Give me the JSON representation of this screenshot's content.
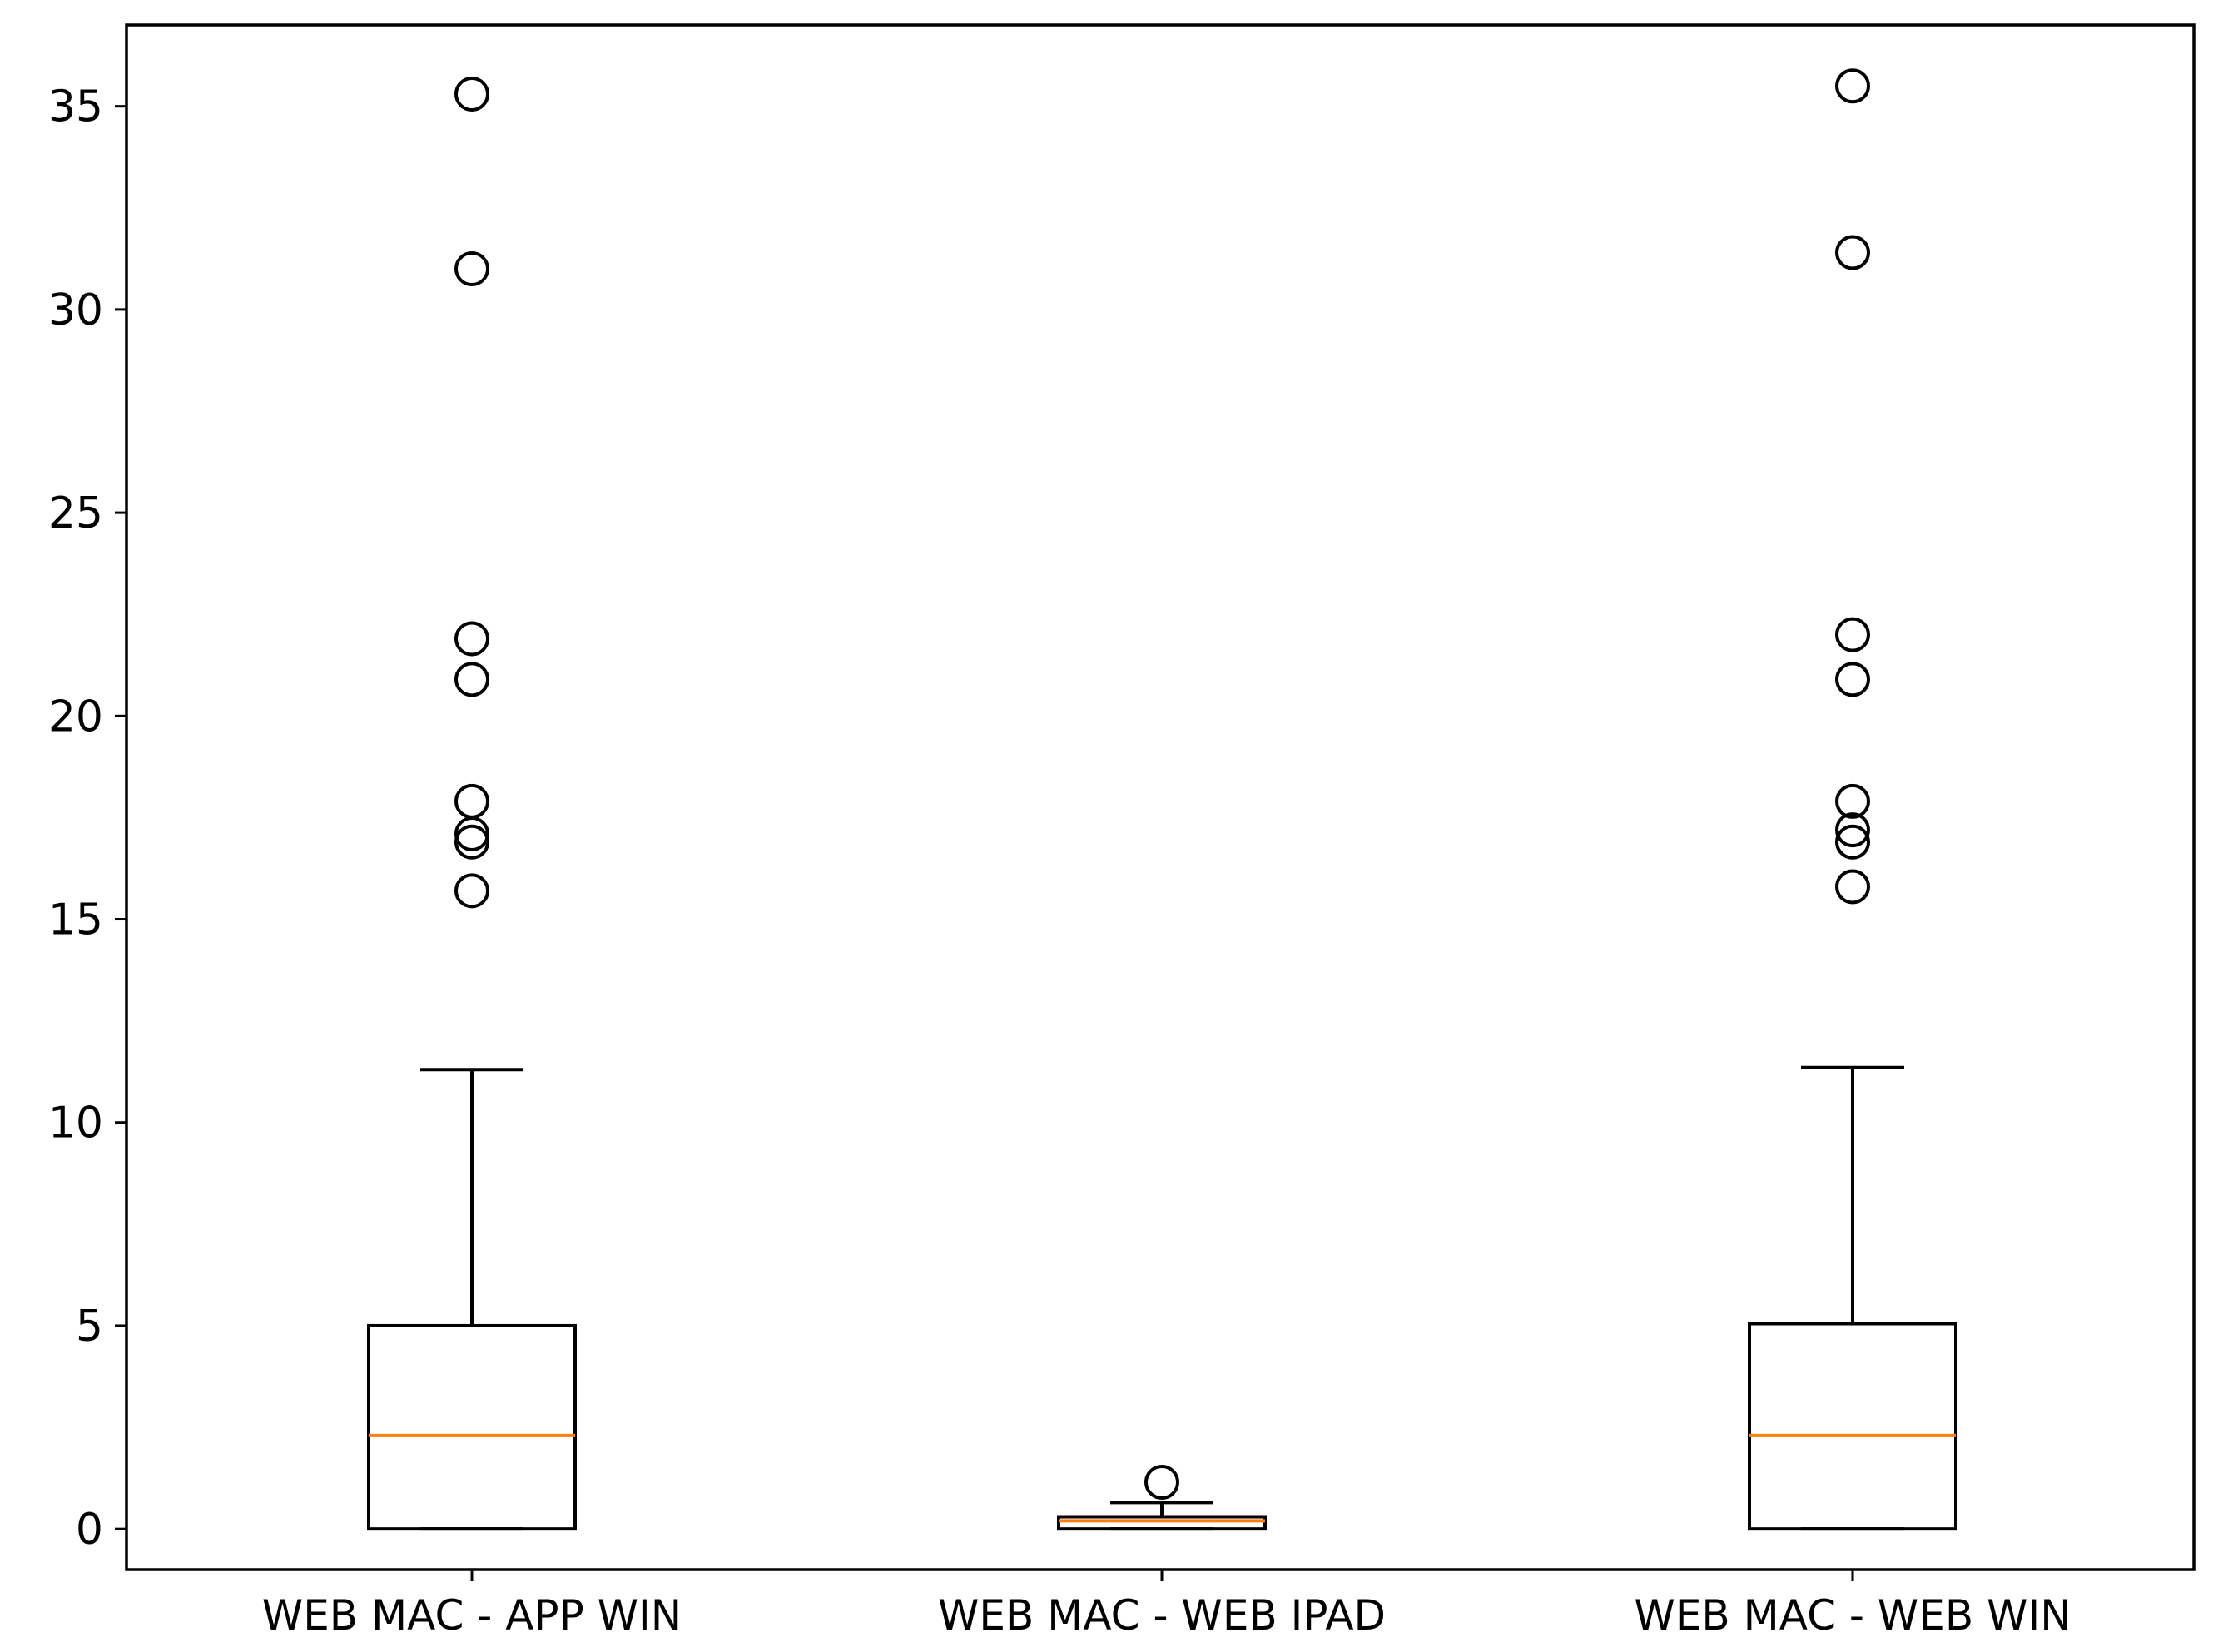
{
  "chart_data": {
    "type": "boxplot",
    "title": "",
    "xlabel": "",
    "ylabel": "",
    "ylim": [
      -1,
      37
    ],
    "yticks": [
      0,
      5,
      10,
      15,
      20,
      25,
      30,
      35
    ],
    "ytick_labels": [
      "0",
      "5",
      "10",
      "15",
      "20",
      "25",
      "30",
      "35"
    ],
    "grid": false,
    "legend": "none",
    "colors": {
      "box": "#000000",
      "median": "#ff7f0e",
      "flier": "#000000"
    },
    "categories": [
      "WEB MAC - APP WIN",
      "WEB MAC - WEB IPAD",
      "WEB MAC - WEB WIN"
    ],
    "boxes": [
      {
        "label": "WEB MAC - APP WIN",
        "whislo": 0,
        "q1": 0,
        "median": 2.3,
        "q3": 5.0,
        "whishi": 11.3,
        "fliers": [
          35.3,
          31.0,
          21.9,
          20.9,
          17.9,
          17.1,
          16.9,
          15.7
        ]
      },
      {
        "label": "WEB MAC - WEB IPAD",
        "whislo": 0,
        "q1": 0,
        "median": 0.2,
        "q3": 0.3,
        "whishi": 0.65,
        "fliers": [
          1.15
        ]
      },
      {
        "label": "WEB MAC - WEB WIN",
        "whislo": 0,
        "q1": 0,
        "median": 2.3,
        "q3": 5.05,
        "whishi": 11.35,
        "fliers": [
          35.5,
          31.4,
          22.0,
          20.9,
          17.9,
          17.2,
          16.9,
          15.8
        ]
      }
    ]
  }
}
